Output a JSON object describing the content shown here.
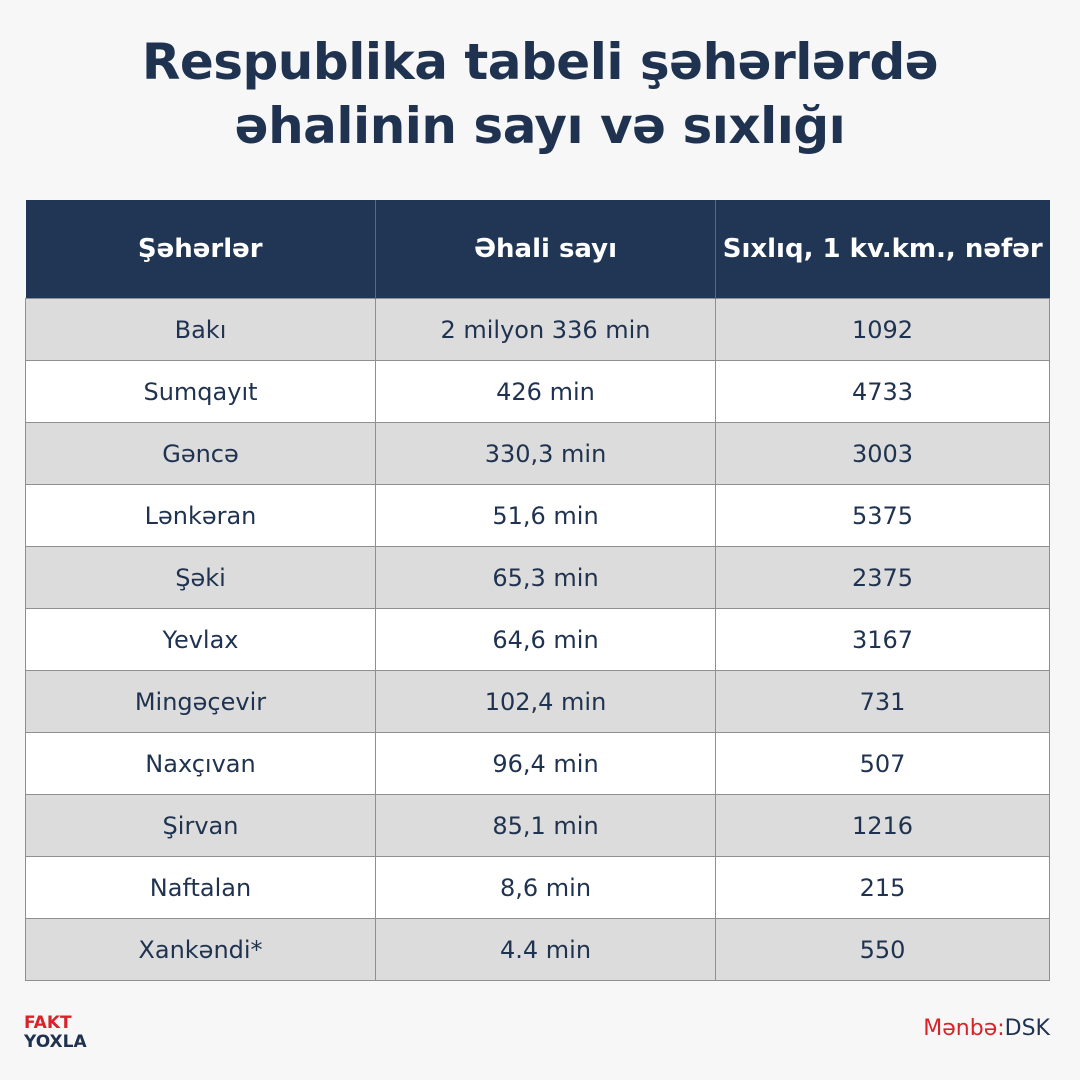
{
  "title": {
    "line1": "Respublika tabeli şəhərlərdə",
    "line2": "əhalinin sayı və sıxlığı"
  },
  "table": {
    "headers": [
      "Şəhərlər",
      "Əhali sayı",
      "Sıxlıq, 1 kv.km., nəfər"
    ],
    "rows": [
      [
        "Bakı",
        "2 milyon 336 min",
        "1092"
      ],
      [
        "Sumqayıt",
        "426 min",
        "4733"
      ],
      [
        "Gəncə",
        "330,3 min",
        "3003"
      ],
      [
        "Lənkəran",
        "51,6 min",
        "5375"
      ],
      [
        "Şəki",
        "65,3 min",
        "2375"
      ],
      [
        "Yevlax",
        "64,6 min",
        "3167"
      ],
      [
        "Mingəçevir",
        "102,4 min",
        "731"
      ],
      [
        "Naxçıvan",
        "96,4 min",
        "507"
      ],
      [
        "Şirvan",
        "85,1 min",
        "1216"
      ],
      [
        "Naftalan",
        "8,6 min",
        "215"
      ],
      [
        "Xankəndi*",
        "4.4 min",
        "550"
      ]
    ]
  },
  "logo": {
    "line1": "FAKT",
    "line2": "YOXLA"
  },
  "source": {
    "label": "Mənbə:",
    "value": "DSK"
  },
  "colors": {
    "navy": "#203654",
    "red": "#d8232a",
    "row_shade": "#dcdcdc"
  }
}
